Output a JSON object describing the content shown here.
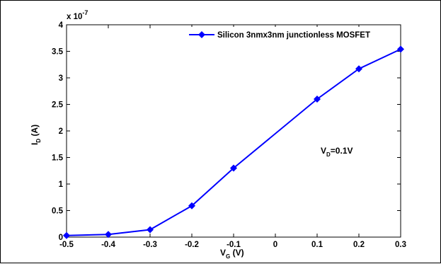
{
  "chart_data": {
    "type": "line",
    "title": "",
    "x": [
      -0.5,
      -0.4,
      -0.3,
      -0.2,
      -0.1,
      0.1,
      0.2,
      0.3
    ],
    "series": [
      {
        "name": "Silicon 3nmx3nm junctionless MOSFET",
        "values": [
          3e-09,
          5e-09,
          1.4e-08,
          5.9e-08,
          1.3e-07,
          2.6e-07,
          3.17e-07,
          3.54e-07
        ],
        "color": "#0000ff",
        "marker": "diamond"
      }
    ],
    "xlim": [
      -0.5,
      0.3
    ],
    "ylim": [
      0,
      4e-07
    ],
    "x_ticks": [
      "-0.5",
      "-0.4",
      "-0.3",
      "-0.2",
      "-0.1",
      "0",
      "0.1",
      "0.2",
      "0.3"
    ],
    "y_ticks": [
      "0",
      "0.5",
      "1",
      "1.5",
      "2",
      "2.5",
      "3",
      "3.5",
      "4"
    ],
    "y_exponent_base": "x 10",
    "y_exponent_power": "-7",
    "xlabel_main": "V",
    "xlabel_sub": "G",
    "xlabel_unit": " (V)",
    "ylabel_main": "I",
    "ylabel_sub": "D",
    "ylabel_unit": " (A)",
    "annotation_main": "V",
    "annotation_sub": "D",
    "annotation_rest": "=0.1V",
    "legend_position": "top-right",
    "grid": false
  }
}
